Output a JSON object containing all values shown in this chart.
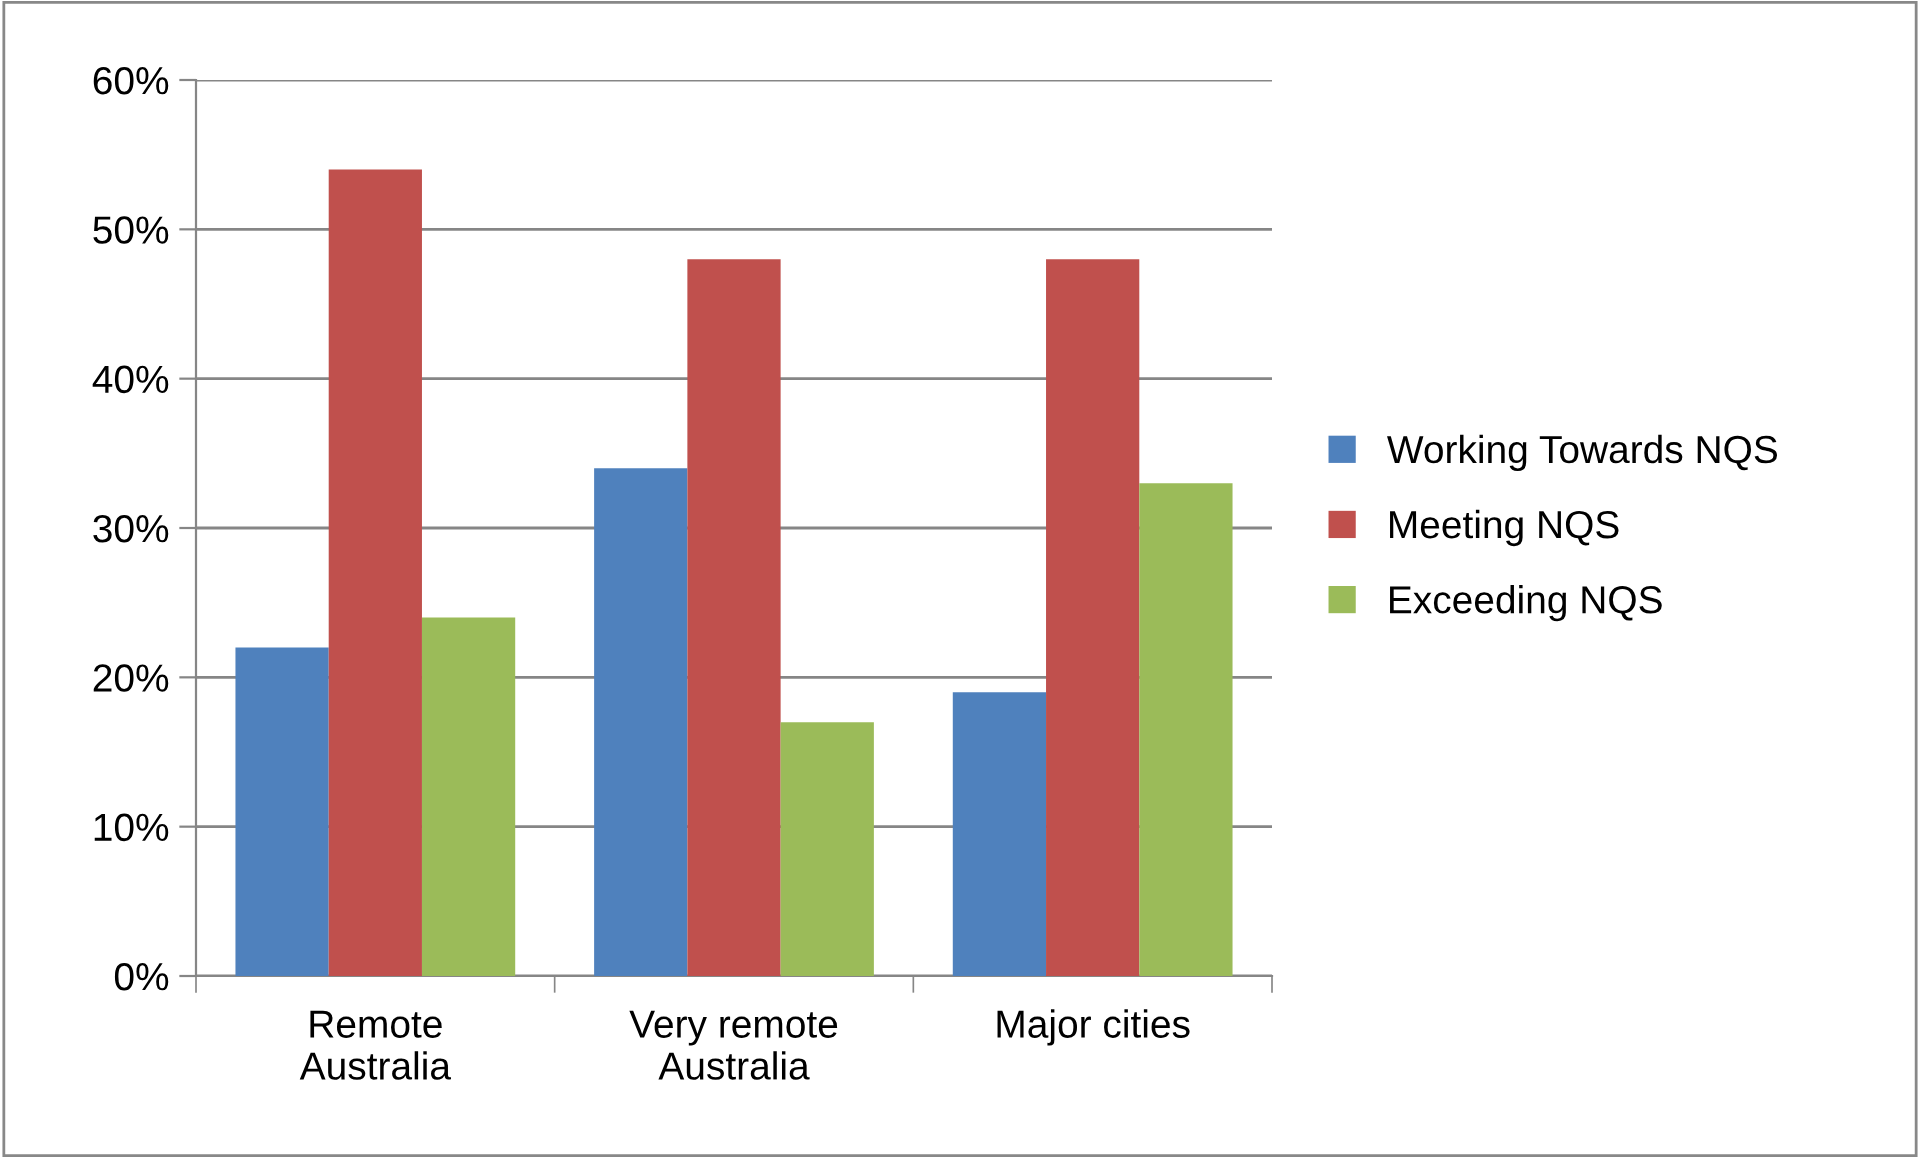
{
  "chart_data": {
    "type": "bar",
    "categories": [
      "Remote\nAustralia",
      "Very remote\nAustralia",
      "Major cities"
    ],
    "series": [
      {
        "name": "Working Towards NQS",
        "color": "#4f81bd",
        "values": [
          22,
          34,
          19
        ]
      },
      {
        "name": "Meeting NQS",
        "color": "#c0504d",
        "values": [
          54,
          48,
          48
        ]
      },
      {
        "name": "Exceeding NQS",
        "color": "#9bbb59",
        "values": [
          24,
          17,
          33
        ]
      }
    ],
    "ylim": [
      0,
      60
    ],
    "yticks": [
      {
        "value": 0,
        "label": "0%"
      },
      {
        "value": 10,
        "label": "10%"
      },
      {
        "value": 20,
        "label": "20%"
      },
      {
        "value": 30,
        "label": "30%"
      },
      {
        "value": 40,
        "label": "40%"
      },
      {
        "value": 50,
        "label": "50%"
      },
      {
        "value": 60,
        "label": "60%"
      }
    ],
    "grid": "y",
    "legend": "right"
  }
}
